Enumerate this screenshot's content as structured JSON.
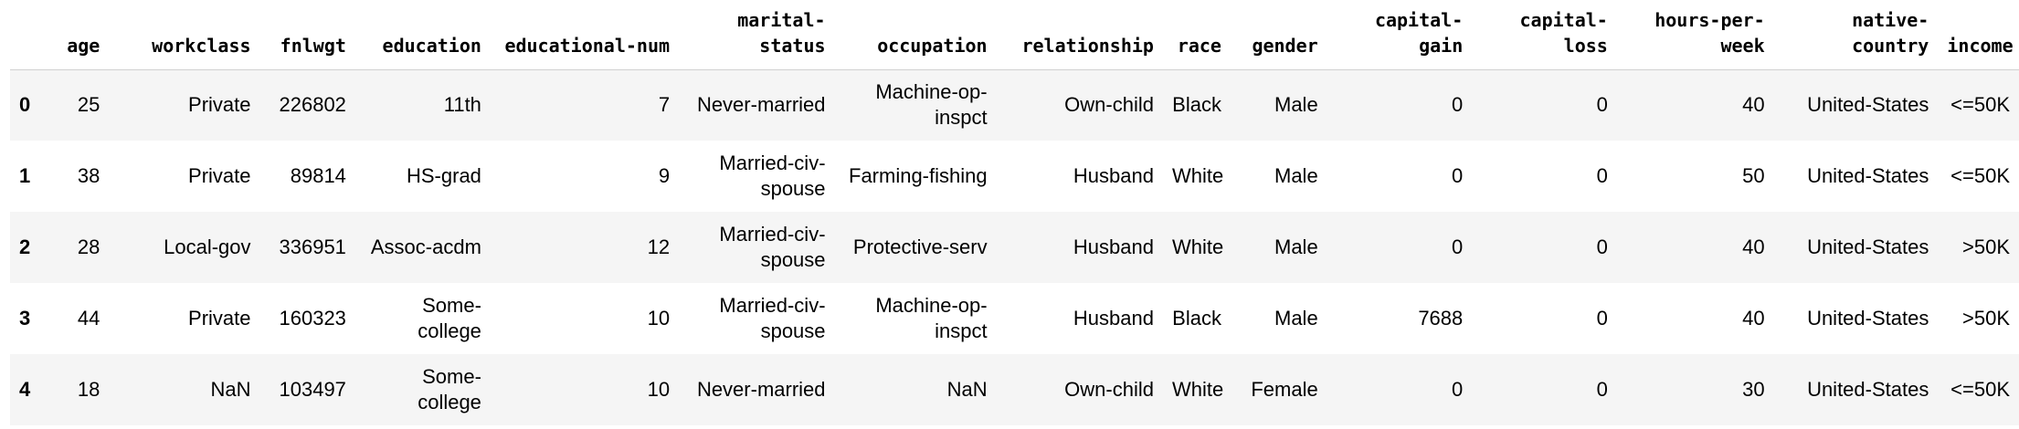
{
  "table": {
    "index_header": "",
    "columns": [
      "age",
      "workclass",
      "fnlwgt",
      "education",
      "educational-num",
      "marital-status",
      "occupation",
      "relationship",
      "race",
      "gender",
      "capital-gain",
      "capital-loss",
      "hours-per-week",
      "native-country",
      "income"
    ],
    "rows": [
      {
        "index": "0",
        "cells": [
          "25",
          "Private",
          "226802",
          "11th",
          "7",
          "Never-married",
          "Machine-op-inspct",
          "Own-child",
          "Black",
          "Male",
          "0",
          "0",
          "40",
          "United-States",
          "<=50K"
        ]
      },
      {
        "index": "1",
        "cells": [
          "38",
          "Private",
          "89814",
          "HS-grad",
          "9",
          "Married-civ-spouse",
          "Farming-fishing",
          "Husband",
          "White",
          "Male",
          "0",
          "0",
          "50",
          "United-States",
          "<=50K"
        ]
      },
      {
        "index": "2",
        "cells": [
          "28",
          "Local-gov",
          "336951",
          "Assoc-acdm",
          "12",
          "Married-civ-spouse",
          "Protective-serv",
          "Husband",
          "White",
          "Male",
          "0",
          "0",
          "40",
          "United-States",
          ">50K"
        ]
      },
      {
        "index": "3",
        "cells": [
          "44",
          "Private",
          "160323",
          "Some-college",
          "10",
          "Married-civ-spouse",
          "Machine-op-inspct",
          "Husband",
          "Black",
          "Male",
          "7688",
          "0",
          "40",
          "United-States",
          ">50K"
        ]
      },
      {
        "index": "4",
        "cells": [
          "18",
          "NaN",
          "103497",
          "Some-college",
          "10",
          "Never-married",
          "NaN",
          "Own-child",
          "White",
          "Female",
          "0",
          "0",
          "30",
          "United-States",
          "<=50K"
        ]
      }
    ]
  },
  "colors": {
    "stripe": "#f5f5f5",
    "header_border": "#d0d0d0",
    "text": "#000000"
  }
}
